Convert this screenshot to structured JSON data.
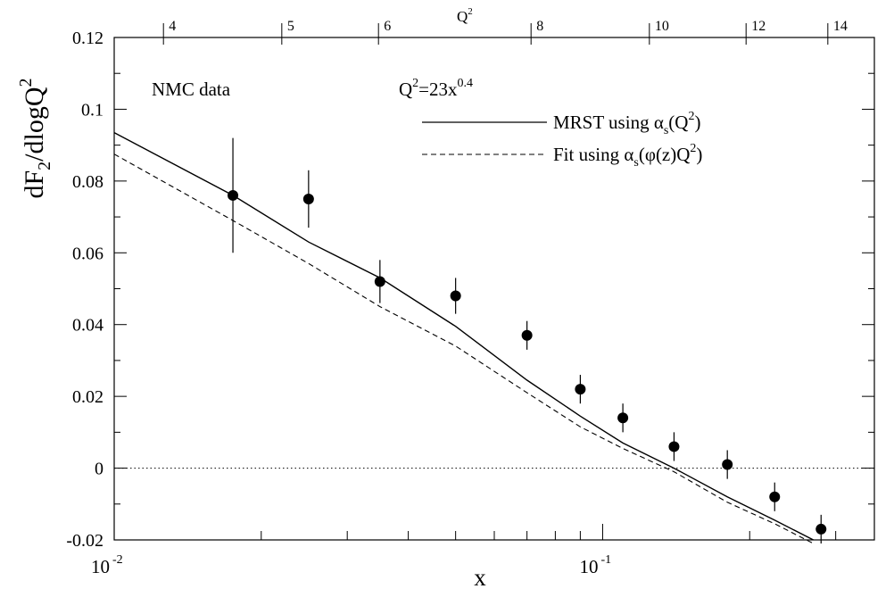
{
  "chart_data": {
    "type": "scatter",
    "xlabel": "x",
    "ylabel_parts": {
      "a": "dF",
      "a_sub": "2",
      "b": "/dlogQ",
      "b_sup": "2"
    },
    "x_scale": "log",
    "xlim": [
      0.01,
      0.36
    ],
    "ylim": [
      -0.02,
      0.12
    ],
    "y_ticks": [
      "-0.02",
      "0",
      "0.02",
      "0.04",
      "0.06",
      "0.08",
      "0.1",
      "0.12"
    ],
    "x_major_ticks": [
      {
        "x": 0.01,
        "base": "10",
        "exp": "-2"
      },
      {
        "x": 0.1,
        "base": "10",
        "exp": "-1"
      }
    ],
    "top_axis": {
      "label_base": "Q",
      "label_sup": "2",
      "ticks": [
        "4",
        "5",
        "6",
        "8",
        "10",
        "12",
        "14"
      ]
    },
    "annotations": {
      "dataset": "NMC data",
      "relation": {
        "a": "Q",
        "a_sup": "2",
        "b": "=23x",
        "b_sup": "0.4"
      }
    },
    "legend": [
      {
        "style": "solid",
        "text": "MRST using ",
        "alpha": "α",
        "sub": "s",
        "mid": "(Q",
        "sup": "2",
        "end": ")"
      },
      {
        "style": "dashed",
        "text": "Fit using ",
        "alpha": "α",
        "sub": "s",
        "mid": "(φ(z)Q",
        "sup": "2",
        "end": ")"
      }
    ],
    "points": [
      {
        "x": 0.0175,
        "y": 0.076,
        "yerr": 0.016
      },
      {
        "x": 0.025,
        "y": 0.075,
        "yerr": 0.008
      },
      {
        "x": 0.035,
        "y": 0.052,
        "yerr": 0.006
      },
      {
        "x": 0.05,
        "y": 0.048,
        "yerr": 0.005
      },
      {
        "x": 0.07,
        "y": 0.037,
        "yerr": 0.004
      },
      {
        "x": 0.09,
        "y": 0.022,
        "yerr": 0.004
      },
      {
        "x": 0.11,
        "y": 0.014,
        "yerr": 0.004
      },
      {
        "x": 0.14,
        "y": 0.006,
        "yerr": 0.004
      },
      {
        "x": 0.18,
        "y": 0.001,
        "yerr": 0.004
      },
      {
        "x": 0.225,
        "y": -0.008,
        "yerr": 0.004
      },
      {
        "x": 0.28,
        "y": -0.017,
        "yerr": 0.004
      }
    ],
    "series": [
      {
        "style": "solid",
        "x": [
          0.01,
          0.0175,
          0.025,
          0.035,
          0.05,
          0.07,
          0.09,
          0.11,
          0.14,
          0.18,
          0.225,
          0.27
        ],
        "y": [
          0.0935,
          0.076,
          0.063,
          0.053,
          0.0395,
          0.0245,
          0.0145,
          0.007,
          0.0,
          -0.008,
          -0.0145,
          -0.02
        ]
      },
      {
        "style": "dashed",
        "x": [
          0.01,
          0.0175,
          0.025,
          0.035,
          0.05,
          0.07,
          0.09,
          0.11,
          0.14,
          0.18,
          0.225,
          0.27
        ],
        "y": [
          0.0875,
          0.069,
          0.057,
          0.045,
          0.034,
          0.021,
          0.0115,
          0.0055,
          -0.001,
          -0.0095,
          -0.0155,
          -0.021
        ]
      }
    ],
    "reference_line": {
      "y": 0,
      "style": "dotted"
    }
  }
}
